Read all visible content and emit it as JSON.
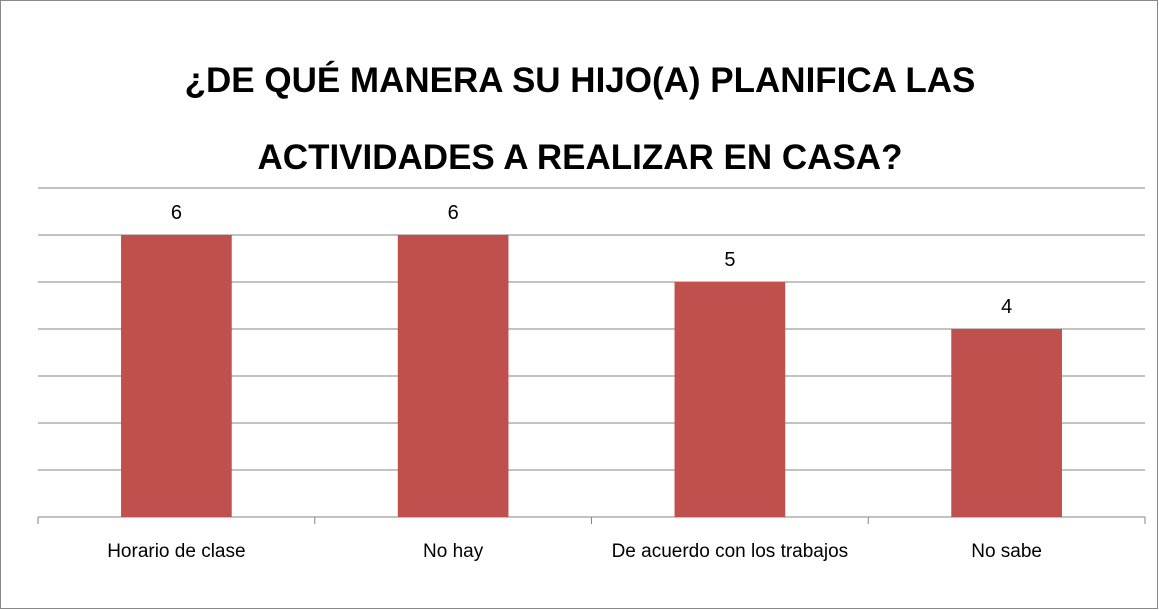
{
  "chart_data": {
    "type": "bar",
    "title": "¿DE QUÉ MANERA SU HIJO(A) PLANIFICA LAS ACTIVIDADES A REALIZAR EN CASA?",
    "categories": [
      "Horario de clase",
      "No hay",
      "De acuerdo con los trabajos",
      "No sabe"
    ],
    "values": [
      6,
      6,
      5,
      4
    ],
    "color": "#c0504d",
    "ylim": [
      0,
      7
    ],
    "yticks": [
      0,
      1,
      2,
      3,
      4,
      5,
      6,
      7
    ],
    "grid": true
  }
}
